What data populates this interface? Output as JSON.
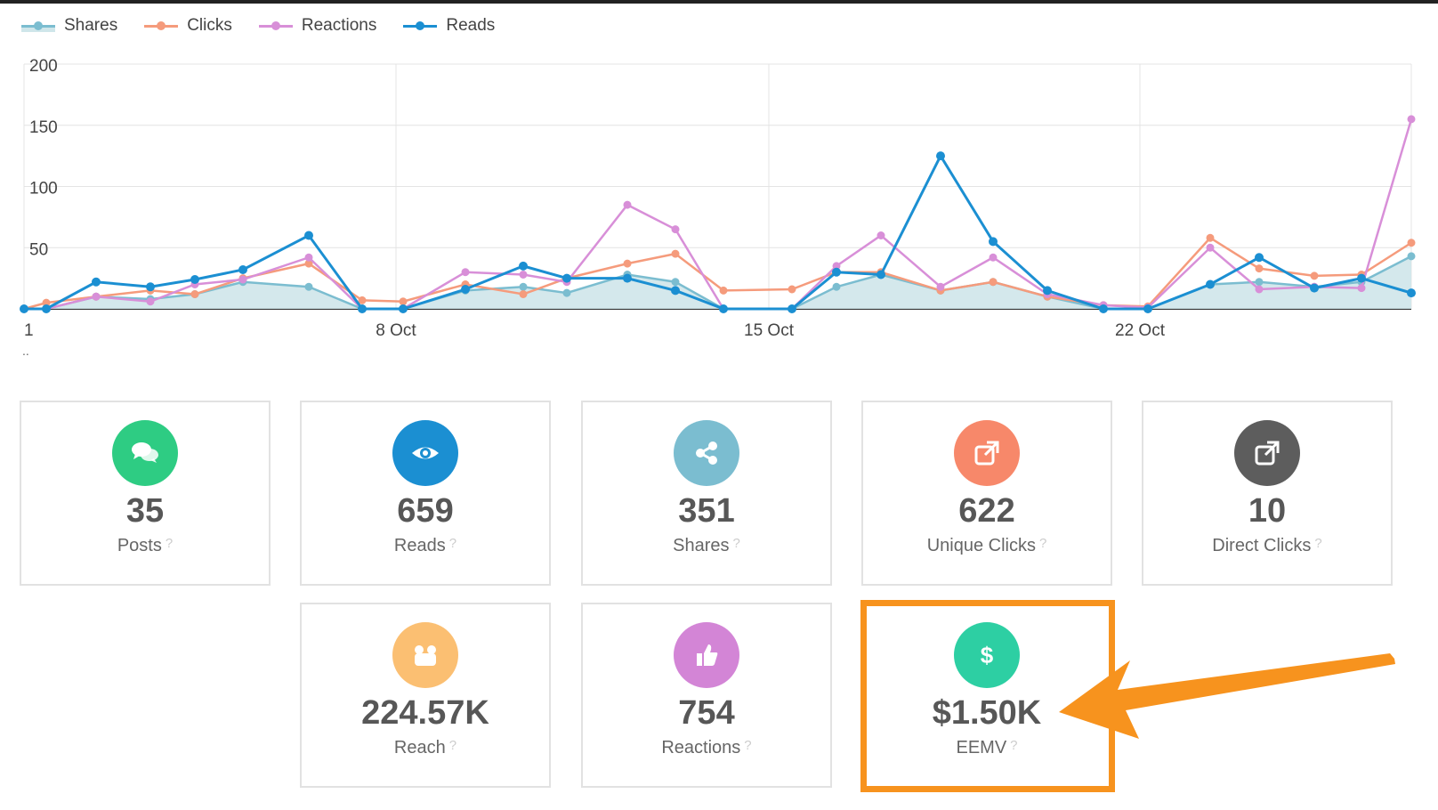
{
  "legend": [
    {
      "label": "Shares",
      "color": "#7bbdd0",
      "fill": "#cfe6ea"
    },
    {
      "label": "Clicks",
      "color": "#f59b7c"
    },
    {
      "label": "Reactions",
      "color": "#d88fd8"
    },
    {
      "label": "Reads",
      "color": "#1b8fd2"
    }
  ],
  "chart_data": {
    "type": "line",
    "x": [
      "1 Oct",
      "1 Oct",
      "2 Oct",
      "3 Oct",
      "4 Oct",
      "5 Oct",
      "6 Oct",
      "7 Oct",
      "8 Oct",
      "9 Oct",
      "10 Oct",
      "11 Oct",
      "12 Oct",
      "13 Oct",
      "14 Oct",
      "15 Oct",
      "16 Oct",
      "17 Oct",
      "18 Oct",
      "19 Oct",
      "20 Oct",
      "21 Oct",
      "22 Oct",
      "23 Oct",
      "24 Oct",
      "25 Oct",
      "26 Oct",
      "27 Oct"
    ],
    "xticks": [
      "1",
      "8 Oct",
      "15 Oct",
      "22 Oct"
    ],
    "sub_label": "..",
    "yticks": [
      "200",
      "150",
      "100",
      "50"
    ],
    "ylim": [
      0,
      200
    ],
    "series": [
      {
        "name": "Shares",
        "values": [
          0,
          0,
          10,
          8,
          12,
          22,
          18,
          0,
          0,
          15,
          18,
          13,
          28,
          22,
          0,
          0,
          18,
          28,
          15,
          22,
          10,
          0,
          0,
          20,
          22,
          18,
          22,
          43
        ]
      },
      {
        "name": "Clicks",
        "values": [
          0,
          5,
          10,
          15,
          12,
          25,
          37,
          7,
          6,
          20,
          12,
          25,
          37,
          45,
          15,
          16,
          30,
          30,
          15,
          22,
          10,
          3,
          2,
          58,
          33,
          27,
          28,
          54
        ]
      },
      {
        "name": "Reactions",
        "values": [
          0,
          0,
          10,
          6,
          20,
          24,
          42,
          0,
          0,
          30,
          28,
          22,
          85,
          65,
          0,
          0,
          35,
          60,
          18,
          42,
          12,
          3,
          1,
          50,
          16,
          18,
          17,
          155
        ]
      },
      {
        "name": "Reads",
        "values": [
          0,
          0,
          22,
          18,
          24,
          32,
          60,
          0,
          0,
          16,
          35,
          25,
          25,
          15,
          0,
          0,
          30,
          28,
          125,
          55,
          15,
          0,
          0,
          20,
          42,
          17,
          25,
          13
        ]
      }
    ]
  },
  "metrics": [
    {
      "value": "35",
      "label": "Posts",
      "color": "#2ecc83",
      "icon": "chat-icon"
    },
    {
      "value": "659",
      "label": "Reads",
      "color": "#1b8fd2",
      "icon": "eye-icon"
    },
    {
      "value": "351",
      "label": "Shares",
      "color": "#7bbdd0",
      "icon": "share-icon"
    },
    {
      "value": "622",
      "label": "Unique Clicks",
      "color": "#f7886a",
      "icon": "external-link-icon"
    },
    {
      "value": "10",
      "label": "Direct Clicks",
      "color": "#5d5d5d",
      "icon": "external-link-icon"
    },
    {
      "value": "224.57K",
      "label": "Reach",
      "color": "#fbbf72",
      "icon": "people-icon"
    },
    {
      "value": "754",
      "label": "Reactions",
      "color": "#d385d6",
      "icon": "thumbs-up-icon"
    },
    {
      "value": "$1.50K",
      "label": "EEMV",
      "color": "#2dcfa3",
      "icon": "dollar-icon"
    }
  ],
  "help_glyph": "?",
  "highlight_color": "#f7931e"
}
